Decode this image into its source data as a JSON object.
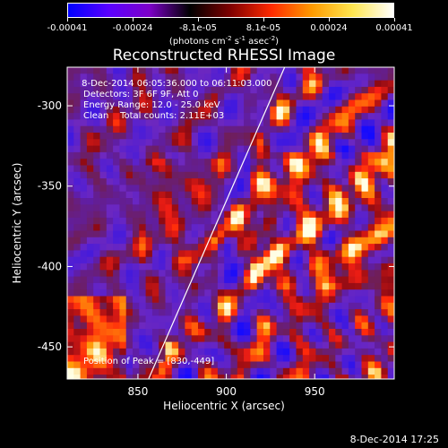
{
  "colorbar": {
    "ticks": [
      "-0.00041",
      "-0.00024",
      "-8.1e-05",
      "8.1e-05",
      "0.00024",
      "0.00041"
    ],
    "units_prefix": "(photons cm",
    "units_exp1": "-2",
    "units_mid": " s",
    "units_exp2": "-1",
    "units_mid2": " asec",
    "units_exp3": "-2",
    "units_suffix": ")",
    "colors": [
      "#0000ff",
      "#5a00ff",
      "#7d00c8",
      "#000000",
      "#800000",
      "#ff2a00",
      "#ff9b00",
      "#ffe650",
      "#ffffff"
    ]
  },
  "chart_data": {
    "type": "heatmap",
    "title": "Reconstructed RHESSI Image",
    "xlabel": "Heliocentric X (arcsec)",
    "ylabel": "Heliocentric Y (arcsec)",
    "xlim": [
      810,
      995
    ],
    "ylim": [
      -470,
      -276
    ],
    "xticks": [
      850,
      900,
      950
    ],
    "xtick_labels": [
      "850",
      "900",
      "950"
    ],
    "yticks": [
      -300,
      -350,
      -400,
      -450
    ],
    "ytick_labels": [
      "-300",
      "-350",
      "-400",
      "-450"
    ],
    "colorscale_range": [
      -0.00041,
      0.00041
    ],
    "limb_line": {
      "x": [
        856,
        933
      ],
      "y": [
        -470,
        -276
      ]
    },
    "annotations": {
      "date_range": " 8-Dec-2014 06:05:36.000 to 06:11:03.000",
      "detectors": "Detectors: 3F 6F 9F, Att 0",
      "energy": "Energy Range: 12.0 - 25.0 keV",
      "clean": "Clean    Total counts: 2.11E+03",
      "peak": "Position of Peak = [830,-449]"
    }
  },
  "footer": {
    "timestamp": "8-Dec-2014 17:25"
  }
}
